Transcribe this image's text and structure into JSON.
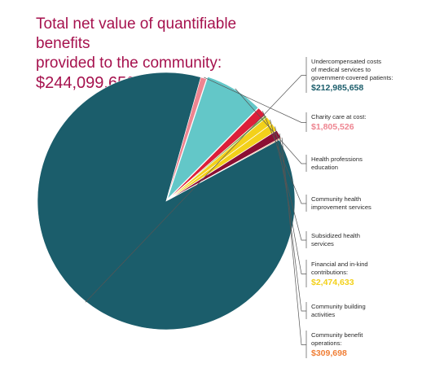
{
  "title": {
    "line1": "Total net value of quantifiable benefits",
    "line2": "provided to the community:",
    "total": "$244,099,659"
  },
  "chart_data": {
    "type": "pie",
    "total": 244099659,
    "slices": [
      {
        "label_lines": [
          "Undercompensated costs",
          "of medical services to",
          "government-covered patients:"
        ],
        "value": 212985658,
        "value_text": "$212,985,658",
        "color": "#1b5d6b",
        "value_color": "#1b5d6b"
      },
      {
        "label_lines": [
          "Charity care at cost:"
        ],
        "value": 1805526,
        "value_text": "$1,805,526",
        "color": "#ee8591",
        "value_color": "#ee8591"
      },
      {
        "label_lines": [
          "Health professions",
          "education"
        ],
        "value": 17990000,
        "value_text": "",
        "color": "#63c7c8",
        "value_color": ""
      },
      {
        "label_lines": [
          "Community health",
          "improvement services"
        ],
        "value": 2900000,
        "value_text": "",
        "color": "#dc1f3a",
        "value_color": ""
      },
      {
        "label_lines": [],
        "value": 680000,
        "value_text": "",
        "color": "#7fae43",
        "value_color": ""
      },
      {
        "label_lines": [
          "Subsidized health",
          "services"
        ],
        "value": 2474633,
        "value_text": "",
        "color": "#f3d11a",
        "value_color": ""
      },
      {
        "label_lines": [
          "Financial and in-kind",
          "contributions:"
        ],
        "value": 2474633,
        "value_text": "$2,474,633",
        "color": "#f3d11a",
        "value_color": "#f3d11a"
      },
      {
        "label_lines": [
          "Community building",
          "activities"
        ],
        "value": 2490000,
        "value_text": "",
        "color": "#8c0f33",
        "value_color": ""
      },
      {
        "label_lines": [
          "Community benefit",
          "operations:"
        ],
        "value": 309698,
        "value_text": "$309,698",
        "color": "#f07e35",
        "value_color": "#f07e35"
      }
    ]
  }
}
